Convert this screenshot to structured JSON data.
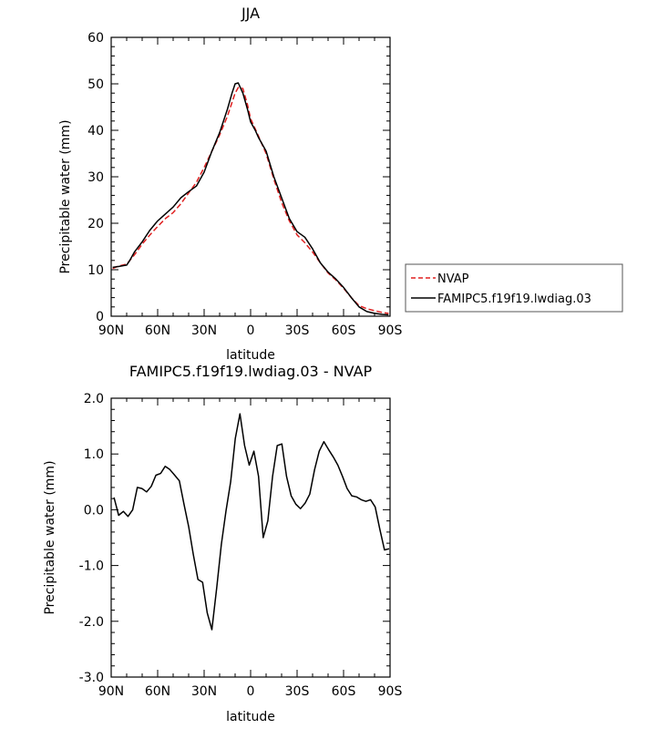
{
  "chart_data": [
    {
      "type": "line",
      "title": "JJA",
      "xlabel": "latitude",
      "ylabel": "Precipitable water (mm)",
      "xlim": [
        90,
        -90
      ],
      "ylim": [
        0,
        60
      ],
      "x_ticks": [
        90,
        60,
        30,
        0,
        -30,
        -60,
        -90
      ],
      "x_tick_labels": [
        "90N",
        "60N",
        "30N",
        "0",
        "30S",
        "60S",
        "90S"
      ],
      "y_ticks": [
        0,
        10,
        20,
        30,
        40,
        50,
        60
      ],
      "y_tick_labels": [
        "0",
        "10",
        "20",
        "30",
        "40",
        "50",
        "60"
      ],
      "grid": false,
      "legend_position": "right",
      "series": [
        {
          "name": "NVAP",
          "color": "#e02020",
          "dash": "dashed",
          "x": [
            89,
            85,
            80,
            78,
            75,
            70,
            65,
            60,
            55,
            50,
            45,
            40,
            35,
            30,
            25,
            20,
            15,
            12,
            10,
            8,
            5,
            2,
            0,
            -3,
            -5,
            -10,
            -15,
            -20,
            -25,
            -30,
            -35,
            -40,
            -45,
            -50,
            -55,
            -60,
            -65,
            -70,
            -75,
            -80,
            -85,
            -89
          ],
          "y": [
            10.3,
            10.8,
            11.2,
            12.0,
            13.2,
            15.5,
            17.5,
            19.3,
            21.0,
            22.3,
            24.2,
            26.5,
            28.8,
            32.0,
            35.5,
            39.0,
            43.0,
            46.0,
            48.0,
            49.2,
            49.0,
            45.5,
            42.5,
            40.3,
            38.8,
            35.0,
            29.5,
            24.5,
            20.5,
            17.5,
            15.8,
            13.8,
            11.5,
            9.3,
            7.8,
            6.0,
            4.0,
            2.3,
            1.6,
            1.2,
            0.8,
            0.6
          ]
        },
        {
          "name": "FAMIPC5.f19f19.lwdiag.03",
          "color": "#000000",
          "dash": "solid",
          "x": [
            89,
            85,
            80,
            78,
            75,
            70,
            65,
            60,
            55,
            50,
            45,
            40,
            35,
            30,
            25,
            20,
            15,
            12,
            10,
            8,
            5,
            2,
            0,
            -3,
            -5,
            -10,
            -15,
            -20,
            -25,
            -30,
            -35,
            -40,
            -45,
            -50,
            -55,
            -60,
            -65,
            -70,
            -75,
            -80,
            -85,
            -89
          ],
          "y": [
            10.5,
            10.7,
            11.0,
            12.0,
            13.8,
            16.0,
            18.5,
            20.5,
            22.0,
            23.5,
            25.5,
            26.8,
            28.0,
            31.0,
            35.5,
            39.5,
            44.5,
            48.0,
            50.0,
            50.2,
            48.0,
            44.5,
            41.8,
            40.0,
            38.5,
            35.5,
            30.0,
            25.5,
            21.0,
            18.2,
            17.0,
            14.5,
            11.5,
            9.5,
            8.0,
            6.2,
            4.0,
            2.0,
            1.0,
            0.6,
            0.4,
            0.3
          ]
        }
      ]
    },
    {
      "type": "line",
      "title": "FAMIPC5.f19f19.lwdiag.03 - NVAP",
      "xlabel": "latitude",
      "ylabel": "Precipitable water (mm)",
      "xlim": [
        90,
        -90
      ],
      "ylim": [
        -3.0,
        2.0
      ],
      "x_ticks": [
        90,
        60,
        30,
        0,
        -30,
        -60,
        -90
      ],
      "x_tick_labels": [
        "90N",
        "60N",
        "30N",
        "0",
        "30S",
        "60S",
        "90S"
      ],
      "y_ticks": [
        2.0,
        1.0,
        0.0,
        -1.0,
        -2.0,
        -3.0
      ],
      "y_tick_labels": [
        "2.0",
        "1.0",
        "0.0",
        "-1.0",
        "-2.0",
        "-3.0"
      ],
      "grid": false,
      "series": [
        {
          "color": "#000000",
          "dash": "solid",
          "x": [
            88.2,
            85.2,
            82.1,
            79.1,
            76.1,
            73.1,
            70.1,
            67.1,
            64.1,
            61.1,
            58.1,
            55.1,
            52.1,
            49.0,
            46.0,
            43.0,
            40.0,
            37.0,
            34.0,
            31.0,
            28.0,
            25.0,
            21.9,
            18.9,
            15.9,
            12.9,
            9.9,
            6.9,
            3.9,
            0.9,
            -2.1,
            -5.1,
            -8.1,
            -11.1,
            -14.2,
            -17.2,
            -20.2,
            -23.2,
            -26.2,
            -29.2,
            -32.2,
            -35.2,
            -38.2,
            -41.3,
            -44.3,
            -47.3,
            -50.3,
            -53.3,
            -56.3,
            -59.3,
            -62.3,
            -65.3,
            -68.4,
            -71.4,
            -74.4,
            -77.4,
            -80.4,
            -83.4,
            -86.4,
            -89.4
          ],
          "y": [
            0.22,
            -0.1,
            -0.03,
            -0.12,
            0.0,
            0.4,
            0.38,
            0.32,
            0.42,
            0.62,
            0.65,
            0.78,
            0.72,
            0.62,
            0.52,
            0.1,
            -0.3,
            -0.8,
            -1.25,
            -1.3,
            -1.85,
            -2.15,
            -1.4,
            -0.62,
            -0.02,
            0.5,
            1.28,
            1.72,
            1.15,
            0.8,
            1.05,
            0.6,
            -0.5,
            -0.2,
            0.6,
            1.15,
            1.18,
            0.6,
            0.25,
            0.1,
            0.02,
            0.12,
            0.28,
            0.72,
            1.05,
            1.22,
            1.08,
            0.95,
            0.8,
            0.6,
            0.38,
            0.25,
            0.23,
            0.18,
            0.15,
            0.18,
            0.05,
            -0.35,
            -0.72,
            -0.7
          ]
        }
      ]
    }
  ]
}
